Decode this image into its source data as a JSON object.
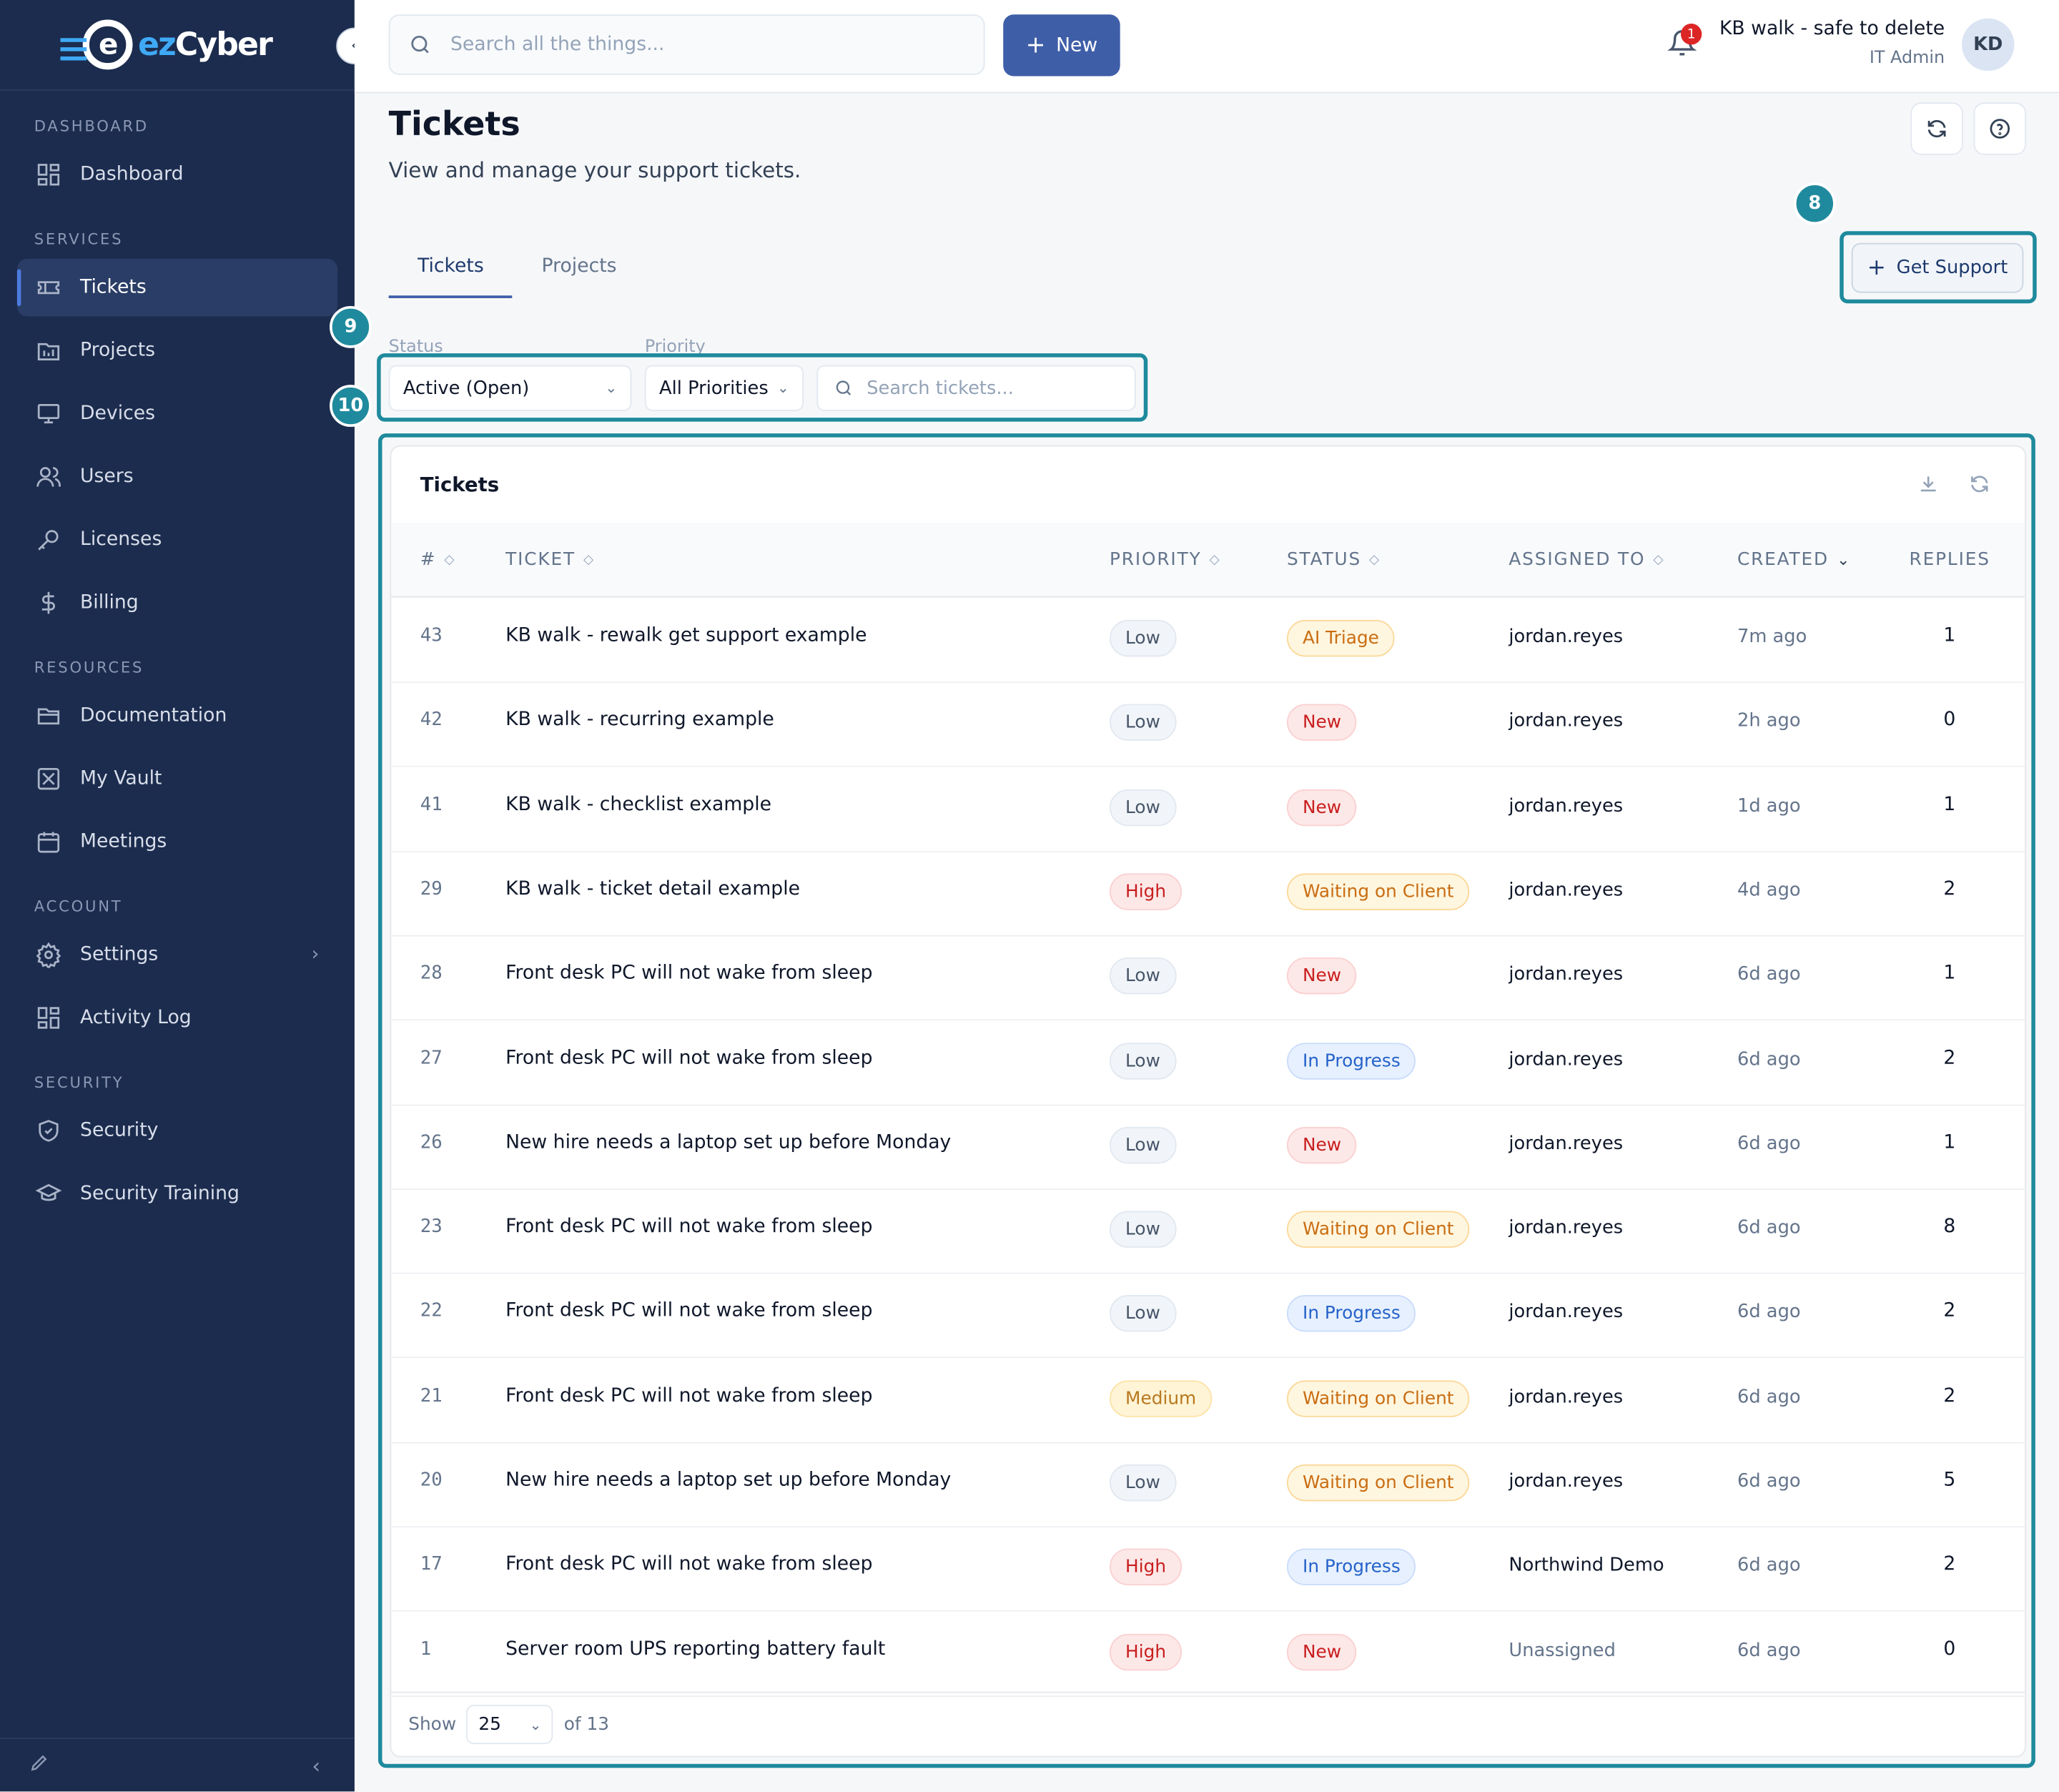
{
  "brand": {
    "logo_text_a": "ez",
    "logo_text_b": "Cyber",
    "logo_mark": "e"
  },
  "topbar": {
    "search_placeholder": "Search all the things...",
    "new_label": "New",
    "notifications_count": "1",
    "user_name": "KB walk - safe to delete",
    "user_role": "IT Admin",
    "avatar_initials": "KD"
  },
  "sidebar": {
    "sections": [
      {
        "label": "DASHBOARD",
        "items": [
          {
            "label": "Dashboard",
            "icon": "grid-icon"
          }
        ]
      },
      {
        "label": "SERVICES",
        "items": [
          {
            "label": "Tickets",
            "icon": "ticket-icon",
            "active": true
          },
          {
            "label": "Projects",
            "icon": "projects-icon"
          },
          {
            "label": "Devices",
            "icon": "monitor-icon"
          },
          {
            "label": "Users",
            "icon": "users-icon"
          },
          {
            "label": "Licenses",
            "icon": "key-icon"
          },
          {
            "label": "Billing",
            "icon": "dollar-icon"
          }
        ]
      },
      {
        "label": "RESOURCES",
        "items": [
          {
            "label": "Documentation",
            "icon": "folder-icon"
          },
          {
            "label": "My Vault",
            "icon": "vault-icon"
          },
          {
            "label": "Meetings",
            "icon": "calendar-icon"
          }
        ]
      },
      {
        "label": "ACCOUNT",
        "items": [
          {
            "label": "Settings",
            "icon": "gear-icon"
          },
          {
            "label": "Activity Log",
            "icon": "grid-icon"
          }
        ]
      },
      {
        "label": "SECURITY",
        "items": [
          {
            "label": "Security",
            "icon": "shield-icon"
          },
          {
            "label": "Security Training",
            "icon": "graduation-cap-icon"
          }
        ]
      }
    ]
  },
  "page": {
    "title": "Tickets",
    "subtitle": "View and manage your support tickets.",
    "tabs": [
      {
        "label": "Tickets",
        "active": true
      },
      {
        "label": "Projects"
      }
    ],
    "get_support_label": "Get Support",
    "callouts": {
      "get_support": "8",
      "filter_label": "9",
      "filter_bar": "10"
    }
  },
  "filters": {
    "status_label": "Status",
    "status_value": "Active (Open)",
    "priority_label": "Priority",
    "priority_value": "All Priorities",
    "search_placeholder": "Search tickets..."
  },
  "table": {
    "title": "Tickets",
    "columns": [
      "#",
      "TICKET",
      "PRIORITY",
      "STATUS",
      "ASSIGNED TO",
      "CREATED",
      "REPLIES"
    ],
    "rows": [
      {
        "num": "43",
        "title": "KB walk - rewalk get support example",
        "priority": "Low",
        "status": "AI Triage",
        "assigned": "jordan.reyes",
        "created": "7m ago",
        "replies": "1"
      },
      {
        "num": "42",
        "title": "KB walk - recurring example",
        "priority": "Low",
        "status": "New",
        "assigned": "jordan.reyes",
        "created": "2h ago",
        "replies": "0"
      },
      {
        "num": "41",
        "title": "KB walk - checklist example",
        "priority": "Low",
        "status": "New",
        "assigned": "jordan.reyes",
        "created": "1d ago",
        "replies": "1"
      },
      {
        "num": "29",
        "title": "KB walk - ticket detail example",
        "priority": "High",
        "status": "Waiting on Client",
        "assigned": "jordan.reyes",
        "created": "4d ago",
        "replies": "2"
      },
      {
        "num": "28",
        "title": "Front desk PC will not wake from sleep",
        "priority": "Low",
        "status": "New",
        "assigned": "jordan.reyes",
        "created": "6d ago",
        "replies": "1"
      },
      {
        "num": "27",
        "title": "Front desk PC will not wake from sleep",
        "priority": "Low",
        "status": "In Progress",
        "assigned": "jordan.reyes",
        "created": "6d ago",
        "replies": "2"
      },
      {
        "num": "26",
        "title": "New hire needs a laptop set up before Monday",
        "priority": "Low",
        "status": "New",
        "assigned": "jordan.reyes",
        "created": "6d ago",
        "replies": "1"
      },
      {
        "num": "23",
        "title": "Front desk PC will not wake from sleep",
        "priority": "Low",
        "status": "Waiting on Client",
        "assigned": "jordan.reyes",
        "created": "6d ago",
        "replies": "8"
      },
      {
        "num": "22",
        "title": "Front desk PC will not wake from sleep",
        "priority": "Low",
        "status": "In Progress",
        "assigned": "jordan.reyes",
        "created": "6d ago",
        "replies": "2"
      },
      {
        "num": "21",
        "title": "Front desk PC will not wake from sleep",
        "priority": "Medium",
        "status": "Waiting on Client",
        "assigned": "jordan.reyes",
        "created": "6d ago",
        "replies": "2"
      },
      {
        "num": "20",
        "title": "New hire needs a laptop set up before Monday",
        "priority": "Low",
        "status": "Waiting on Client",
        "assigned": "jordan.reyes",
        "created": "6d ago",
        "replies": "5"
      },
      {
        "num": "17",
        "title": "Front desk PC will not wake from sleep",
        "priority": "High",
        "status": "In Progress",
        "assigned": "Northwind Demo",
        "created": "6d ago",
        "replies": "2"
      },
      {
        "num": "1",
        "title": "Server room UPS reporting battery fault",
        "priority": "High",
        "status": "New",
        "assigned": "Unassigned",
        "created": "6d ago",
        "replies": "0"
      }
    ],
    "footer": {
      "show_label": "Show",
      "page_size": "25",
      "total_label": "of 13"
    }
  },
  "colors": {
    "sidebar_bg": "#1c2c4e",
    "accent": "#3f5ea8",
    "callout": "#1f8a9d"
  }
}
